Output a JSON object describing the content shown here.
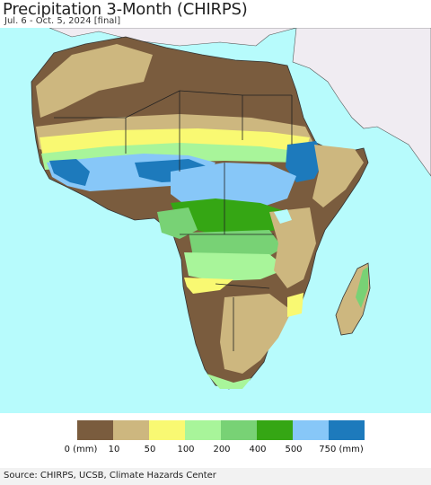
{
  "title": "Precipitation 3-Month (CHIRPS)",
  "subtitle": "Jul. 6 - Oct. 5, 2024 [final]",
  "legend": {
    "colors": [
      "#7a5c3e",
      "#cdb77f",
      "#f9f972",
      "#a8f59a",
      "#78d275",
      "#35a614",
      "#87c7f8",
      "#1d7abc"
    ],
    "labels": [
      "0 (mm)",
      "10",
      "50",
      "100",
      "200",
      "400",
      "500",
      "750 (mm)"
    ]
  },
  "colors": {
    "ocean": "#b7fbfc",
    "landmass_outside": "#f0ecf2",
    "dry": "#7a5c3e",
    "semi_dry": "#cdb77f",
    "yellow": "#f9f972",
    "light_green": "#a8f59a",
    "green": "#78d275",
    "dark_green": "#35a614",
    "light_blue": "#87c7f8",
    "blue": "#1d7abc"
  },
  "source": "Source: CHIRPS, UCSB, Climate Hazards Center"
}
